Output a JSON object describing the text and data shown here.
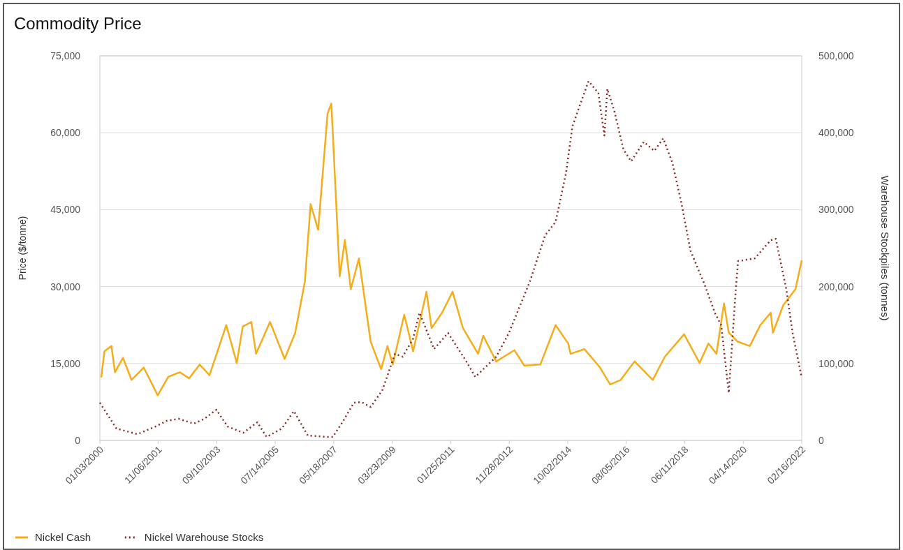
{
  "chart_data": {
    "type": "line",
    "title": "Commodity Price",
    "ylabel": "Price ($/tonne)",
    "y2label": "Warehouse Stockpiles (tonnes)",
    "xlim": [
      "2000-01-03",
      "2022-02-16"
    ],
    "xticks": [
      {
        "value": "2000-01-03",
        "label": "01/03/2000"
      },
      {
        "value": "2001-11-06",
        "label": "11/06/2001"
      },
      {
        "value": "2003-09-10",
        "label": "09/10/2003"
      },
      {
        "value": "2005-07-14",
        "label": "07/14/2005"
      },
      {
        "value": "2007-05-18",
        "label": "05/18/2007"
      },
      {
        "value": "2009-03-23",
        "label": "03/23/2009"
      },
      {
        "value": "2011-01-25",
        "label": "01/25/2011"
      },
      {
        "value": "2012-11-28",
        "label": "11/28/2012"
      },
      {
        "value": "2014-10-02",
        "label": "10/02/2014"
      },
      {
        "value": "2016-08-05",
        "label": "08/05/2016"
      },
      {
        "value": "2018-06-11",
        "label": "06/11/2018"
      },
      {
        "value": "2020-04-14",
        "label": "04/14/2020"
      },
      {
        "value": "2022-02-16",
        "label": "02/16/2022"
      }
    ],
    "ylim": [
      0,
      75000
    ],
    "yticks": [
      {
        "value": 0,
        "label": "0"
      },
      {
        "value": 15000,
        "label": "15,000"
      },
      {
        "value": 30000,
        "label": "30,000"
      },
      {
        "value": 45000,
        "label": "45,000"
      },
      {
        "value": 60000,
        "label": "60,000"
      },
      {
        "value": 75000,
        "label": "75,000"
      }
    ],
    "y2lim": [
      0,
      500000
    ],
    "y2ticks": [
      {
        "value": 0,
        "label": "0"
      },
      {
        "value": 100000,
        "label": "100,000"
      },
      {
        "value": 200000,
        "label": "200,000"
      },
      {
        "value": 300000,
        "label": "300,000"
      },
      {
        "value": 400000,
        "label": "400,000"
      },
      {
        "value": 500000,
        "label": "500,000"
      }
    ],
    "grid": "y",
    "legend": "bottom",
    "series": [
      {
        "name": "Nickel Cash",
        "color": "#f5ad1b",
        "line_style": "solid",
        "x": [
          "2000-01-20",
          "2000-02-25",
          "2000-05-15",
          "2000-06-25",
          "2000-09-25",
          "2001-01-01",
          "2001-05-22",
          "2001-10-30",
          "2002-02-28",
          "2002-07-12",
          "2002-10-27",
          "2003-02-25",
          "2003-06-18",
          "2003-12-28",
          "2004-04-27",
          "2004-07-05",
          "2004-10-12",
          "2004-12-05",
          "2005-05-15",
          "2005-10-30",
          "2006-03-01",
          "2006-06-20",
          "2006-08-25",
          "2006-11-20",
          "2007-03-08",
          "2007-04-20",
          "2007-05-08",
          "2007-07-26",
          "2007-09-24",
          "2007-12-01",
          "2008-03-03",
          "2008-07-16",
          "2008-11-14",
          "2009-01-26",
          "2009-03-28",
          "2009-08-07",
          "2009-11-17",
          "2010-04-20",
          "2010-06-18",
          "2010-10-16",
          "2011-02-14",
          "2011-06-14",
          "2011-12-05",
          "2012-02-03",
          "2012-07-01",
          "2013-01-26",
          "2013-05-19",
          "2013-11-21",
          "2014-05-15",
          "2014-10-08",
          "2014-11-03",
          "2015-04-13",
          "2015-10-05",
          "2016-02-03",
          "2016-06-03",
          "2016-11-10",
          "2017-06-07",
          "2017-10-23",
          "2018-06-03",
          "2018-11-28",
          "2019-03-10",
          "2019-06-10",
          "2019-09-05",
          "2019-10-30",
          "2020-02-06",
          "2020-06-28",
          "2020-10-27",
          "2021-02-24",
          "2021-03-21",
          "2021-07-19",
          "2021-12-06",
          "2022-02-14"
        ],
        "values": [
          12400,
          17400,
          18400,
          13300,
          16100,
          11800,
          14200,
          8800,
          12400,
          13300,
          12100,
          14800,
          12700,
          22500,
          15100,
          22200,
          23100,
          16900,
          23100,
          15900,
          21000,
          31000,
          46100,
          41100,
          63700,
          65700,
          59800,
          32000,
          39100,
          29500,
          35500,
          19300,
          13900,
          18400,
          14800,
          24500,
          17400,
          29000,
          21900,
          24900,
          29000,
          21900,
          16900,
          20400,
          15400,
          17600,
          14600,
          14800,
          22500,
          18900,
          16900,
          17800,
          14300,
          10900,
          11800,
          15400,
          11800,
          16300,
          20700,
          15100,
          18900,
          16900,
          26700,
          21000,
          19300,
          18400,
          22500,
          24900,
          21000,
          26400,
          29500,
          35000
        ]
      },
      {
        "name": "Nickel Warehouse Stocks",
        "color": "#8b2a22",
        "line_style": "dotted",
        "axis": "y2",
        "x": [
          "2000-01-03",
          "2000-07-12",
          "2001-03-10",
          "2001-10-05",
          "2002-02-10",
          "2002-06-28",
          "2002-12-20",
          "2003-04-20",
          "2003-09-05",
          "2004-01-12",
          "2004-07-12",
          "2004-12-20",
          "2005-04-05",
          "2005-09-27",
          "2006-02-14",
          "2006-07-24",
          "2007-03-22",
          "2007-05-08",
          "2007-09-05",
          "2008-01-05",
          "2008-04-01",
          "2008-07-16",
          "2008-11-28",
          "2009-04-23",
          "2009-07-20",
          "2009-11-17",
          "2010-01-30",
          "2010-07-16",
          "2010-12-24",
          "2011-07-24",
          "2011-11-03",
          "2012-07-01",
          "2012-11-24",
          "2013-07-24",
          "2014-01-15",
          "2014-05-15",
          "2014-09-12",
          "2014-11-25",
          "2015-02-06",
          "2015-05-30",
          "2015-09-20",
          "2015-11-28",
          "2016-01-01",
          "2016-03-22",
          "2016-07-05",
          "2016-10-01",
          "2017-02-24",
          "2017-06-25",
          "2017-10-05",
          "2018-01-19",
          "2018-05-05",
          "2018-08-15",
          "2019-01-23",
          "2019-05-23",
          "2019-08-04",
          "2019-10-30",
          "2020-01-19",
          "2020-02-14",
          "2020-08-25",
          "2021-02-24",
          "2021-04-23",
          "2021-08-22",
          "2021-11-03",
          "2022-02-14"
        ],
        "values": [
          49000,
          15400,
          8200,
          18100,
          25400,
          28100,
          21800,
          28100,
          39900,
          18100,
          10000,
          23600,
          4500,
          15400,
          38100,
          6300,
          4500,
          4500,
          25400,
          49000,
          49900,
          43500,
          65300,
          112500,
          108800,
          132400,
          166000,
          118800,
          139700,
          102500,
          82500,
          108800,
          139700,
          206800,
          266700,
          283900,
          347400,
          408200,
          431700,
          467100,
          451700,
          396400,
          457100,
          428100,
          378200,
          362800,
          388200,
          376400,
          392700,
          361000,
          307500,
          246700,
          203200,
          166000,
          149700,
          61700,
          196800,
          233100,
          236700,
          260300,
          262100,
          196800,
          139700,
          82500
        ]
      }
    ]
  }
}
